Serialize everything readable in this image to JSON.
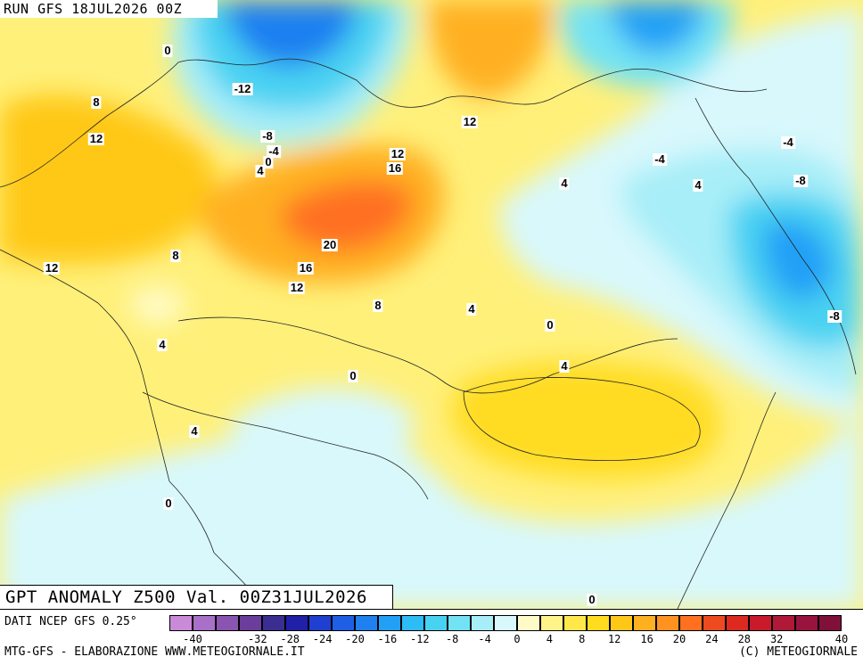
{
  "header": {
    "run_title": "RUN GFS 18JUL2026 00Z"
  },
  "map": {
    "title": "GPT ANOMALY Z500 Val. 00Z31JUL2026",
    "contour_labels": [
      "0",
      "-12",
      "-8",
      "-4",
      "0",
      "4",
      "8",
      "12",
      "12",
      "12",
      "16",
      "20",
      "16",
      "12",
      "8",
      "8",
      "12",
      "4",
      "4",
      "-4",
      "4",
      "0",
      "-4",
      "-8",
      "-8",
      "4",
      "0",
      "4",
      "4",
      "0",
      "0",
      "0"
    ]
  },
  "footer": {
    "source": "DATI NCEP GFS 0.25°",
    "credit_left": "MTG-GFS - ELABORAZIONE WWW.METEOGIORNALE.IT",
    "credit_right": "(C) METEOGIORNALE"
  },
  "colorbar": {
    "colors": [
      "#c98ad8",
      "#a870c8",
      "#8a55b0",
      "#6a3e9a",
      "#3a2e92",
      "#2020a8",
      "#1f3fd0",
      "#1e5fe6",
      "#1f80f0",
      "#22a0f6",
      "#2ebcf6",
      "#48d2f2",
      "#72e2f4",
      "#a8eef8",
      "#d8f8fc",
      "#fffbc8",
      "#fff38a",
      "#ffe84a",
      "#ffdc20",
      "#ffc818",
      "#ffb020",
      "#ff9220",
      "#ff7020",
      "#ee4a20",
      "#dc2a20",
      "#c81a2a",
      "#b01838",
      "#98143e",
      "#80103a"
    ],
    "ticks": [
      "-40",
      "-32",
      "-28",
      "-24",
      "-20",
      "-16",
      "-12",
      "-8",
      "-4",
      "0",
      "4",
      "8",
      "12",
      "16",
      "20",
      "24",
      "28",
      "32",
      "40"
    ]
  }
}
